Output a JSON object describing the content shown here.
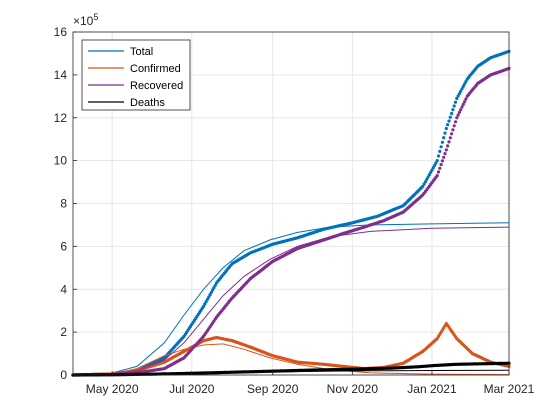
{
  "chart_data": {
    "type": "scatter",
    "y_exponent_label": "×10",
    "y_exponent_power": "5",
    "y_scale": 100000,
    "xlim": [
      "2020-04-01",
      "2021-03-01"
    ],
    "ylim": [
      0,
      16
    ],
    "x_ticks": [
      {
        "date": "2020-05-01",
        "label": "May 2020"
      },
      {
        "date": "2020-07-01",
        "label": "Jul 2020"
      },
      {
        "date": "2020-09-01",
        "label": "Sep 2020"
      },
      {
        "date": "2020-11-01",
        "label": "Nov 2020"
      },
      {
        "date": "2021-01-01",
        "label": "Jan 2021"
      },
      {
        "date": "2021-03-01",
        "label": "Mar 2021"
      }
    ],
    "y_ticks": [
      0,
      2,
      4,
      6,
      8,
      10,
      12,
      14,
      16
    ],
    "grid": true,
    "legend_position": "top-left",
    "series": [
      {
        "name": "Total",
        "color": "#0072BD",
        "fit": [
          [
            "2020-04-01",
            0
          ],
          [
            "2020-05-01",
            0.1
          ],
          [
            "2020-05-20",
            0.4
          ],
          [
            "2020-06-10",
            1.5
          ],
          [
            "2020-06-25",
            2.8
          ],
          [
            "2020-07-10",
            4.0
          ],
          [
            "2020-07-25",
            5.0
          ],
          [
            "2020-08-10",
            5.8
          ],
          [
            "2020-08-30",
            6.3
          ],
          [
            "2020-09-20",
            6.65
          ],
          [
            "2020-10-15",
            6.9
          ],
          [
            "2020-11-15",
            7.0
          ],
          [
            "2021-01-01",
            7.05
          ],
          [
            "2021-03-01",
            7.1
          ]
        ],
        "points": [
          [
            "2020-04-01",
            0
          ],
          [
            "2020-05-01",
            0.05
          ],
          [
            "2020-05-20",
            0.2
          ],
          [
            "2020-06-10",
            0.8
          ],
          [
            "2020-06-25",
            1.8
          ],
          [
            "2020-07-10",
            3.2
          ],
          [
            "2020-07-20",
            4.3
          ],
          [
            "2020-08-01",
            5.2
          ],
          [
            "2020-08-15",
            5.7
          ],
          [
            "2020-09-01",
            6.1
          ],
          [
            "2020-09-20",
            6.4
          ],
          [
            "2020-10-10",
            6.8
          ],
          [
            "2020-11-01",
            7.1
          ],
          [
            "2020-11-20",
            7.4
          ],
          [
            "2020-12-10",
            7.9
          ],
          [
            "2020-12-25",
            8.8
          ],
          [
            "2021-01-05",
            10.0
          ],
          [
            "2021-01-12",
            11.5
          ],
          [
            "2021-01-20",
            12.9
          ],
          [
            "2021-01-28",
            13.8
          ],
          [
            "2021-02-05",
            14.4
          ],
          [
            "2021-02-15",
            14.8
          ],
          [
            "2021-03-01",
            15.1
          ]
        ]
      },
      {
        "name": "Confirmed",
        "color": "#D95319",
        "fit": [
          [
            "2020-04-01",
            0
          ],
          [
            "2020-05-01",
            0.05
          ],
          [
            "2020-05-20",
            0.3
          ],
          [
            "2020-06-10",
            0.9
          ],
          [
            "2020-06-25",
            1.2
          ],
          [
            "2020-07-10",
            1.4
          ],
          [
            "2020-07-25",
            1.45
          ],
          [
            "2020-08-10",
            1.2
          ],
          [
            "2020-08-30",
            0.8
          ],
          [
            "2020-09-20",
            0.5
          ],
          [
            "2020-10-15",
            0.25
          ],
          [
            "2020-11-15",
            0.1
          ],
          [
            "2021-01-01",
            0.04
          ],
          [
            "2021-03-01",
            0.02
          ]
        ],
        "points": [
          [
            "2020-04-01",
            0
          ],
          [
            "2020-05-01",
            0.05
          ],
          [
            "2020-05-20",
            0.2
          ],
          [
            "2020-06-10",
            0.6
          ],
          [
            "2020-06-25",
            1.1
          ],
          [
            "2020-07-10",
            1.6
          ],
          [
            "2020-07-20",
            1.75
          ],
          [
            "2020-08-01",
            1.6
          ],
          [
            "2020-08-15",
            1.3
          ],
          [
            "2020-09-01",
            0.9
          ],
          [
            "2020-09-20",
            0.6
          ],
          [
            "2020-10-10",
            0.5
          ],
          [
            "2020-10-25",
            0.4
          ],
          [
            "2020-11-10",
            0.3
          ],
          [
            "2020-11-25",
            0.35
          ],
          [
            "2020-12-10",
            0.55
          ],
          [
            "2020-12-25",
            1.1
          ],
          [
            "2021-01-05",
            1.7
          ],
          [
            "2021-01-12",
            2.4
          ],
          [
            "2021-01-20",
            1.7
          ],
          [
            "2021-02-01",
            1.0
          ],
          [
            "2021-02-15",
            0.6
          ],
          [
            "2021-03-01",
            0.4
          ]
        ]
      },
      {
        "name": "Recovered",
        "color": "#7E2F8E",
        "fit": [
          [
            "2020-04-01",
            0
          ],
          [
            "2020-05-01",
            0.05
          ],
          [
            "2020-05-20",
            0.2
          ],
          [
            "2020-06-10",
            0.7
          ],
          [
            "2020-06-25",
            1.5
          ],
          [
            "2020-07-10",
            2.6
          ],
          [
            "2020-07-25",
            3.7
          ],
          [
            "2020-08-10",
            4.6
          ],
          [
            "2020-08-30",
            5.4
          ],
          [
            "2020-09-20",
            6.0
          ],
          [
            "2020-10-15",
            6.45
          ],
          [
            "2020-11-15",
            6.7
          ],
          [
            "2021-01-01",
            6.85
          ],
          [
            "2021-03-01",
            6.9
          ]
        ],
        "points": [
          [
            "2020-04-01",
            0
          ],
          [
            "2020-05-01",
            0.02
          ],
          [
            "2020-05-20",
            0.1
          ],
          [
            "2020-06-10",
            0.3
          ],
          [
            "2020-06-25",
            0.8
          ],
          [
            "2020-07-10",
            1.8
          ],
          [
            "2020-07-20",
            2.7
          ],
          [
            "2020-08-01",
            3.6
          ],
          [
            "2020-08-15",
            4.5
          ],
          [
            "2020-09-01",
            5.3
          ],
          [
            "2020-09-20",
            5.9
          ],
          [
            "2020-10-10",
            6.3
          ],
          [
            "2020-10-25",
            6.6
          ],
          [
            "2020-11-10",
            6.9
          ],
          [
            "2020-11-25",
            7.2
          ],
          [
            "2020-12-10",
            7.6
          ],
          [
            "2020-12-25",
            8.4
          ],
          [
            "2021-01-05",
            9.3
          ],
          [
            "2021-01-12",
            10.5
          ],
          [
            "2021-01-20",
            12.0
          ],
          [
            "2021-01-28",
            13.0
          ],
          [
            "2021-02-05",
            13.6
          ],
          [
            "2021-02-15",
            14.0
          ],
          [
            "2021-03-01",
            14.3
          ]
        ]
      },
      {
        "name": "Deaths",
        "color": "#000000",
        "fit": [
          [
            "2020-04-01",
            0
          ],
          [
            "2020-05-01",
            0.01
          ],
          [
            "2020-06-01",
            0.03
          ],
          [
            "2020-07-01",
            0.06
          ],
          [
            "2020-08-01",
            0.1
          ],
          [
            "2020-09-01",
            0.14
          ],
          [
            "2020-10-01",
            0.17
          ],
          [
            "2020-11-01",
            0.19
          ],
          [
            "2020-12-01",
            0.2
          ],
          [
            "2021-01-01",
            0.21
          ],
          [
            "2021-03-01",
            0.22
          ]
        ],
        "points": [
          [
            "2020-04-01",
            0
          ],
          [
            "2020-05-01",
            0.01
          ],
          [
            "2020-06-01",
            0.04
          ],
          [
            "2020-07-01",
            0.08
          ],
          [
            "2020-08-01",
            0.13
          ],
          [
            "2020-09-01",
            0.18
          ],
          [
            "2020-10-01",
            0.23
          ],
          [
            "2020-11-01",
            0.27
          ],
          [
            "2020-12-01",
            0.32
          ],
          [
            "2020-12-20",
            0.38
          ],
          [
            "2021-01-05",
            0.45
          ],
          [
            "2021-01-20",
            0.5
          ],
          [
            "2021-02-05",
            0.52
          ],
          [
            "2021-03-01",
            0.55
          ]
        ]
      }
    ]
  }
}
